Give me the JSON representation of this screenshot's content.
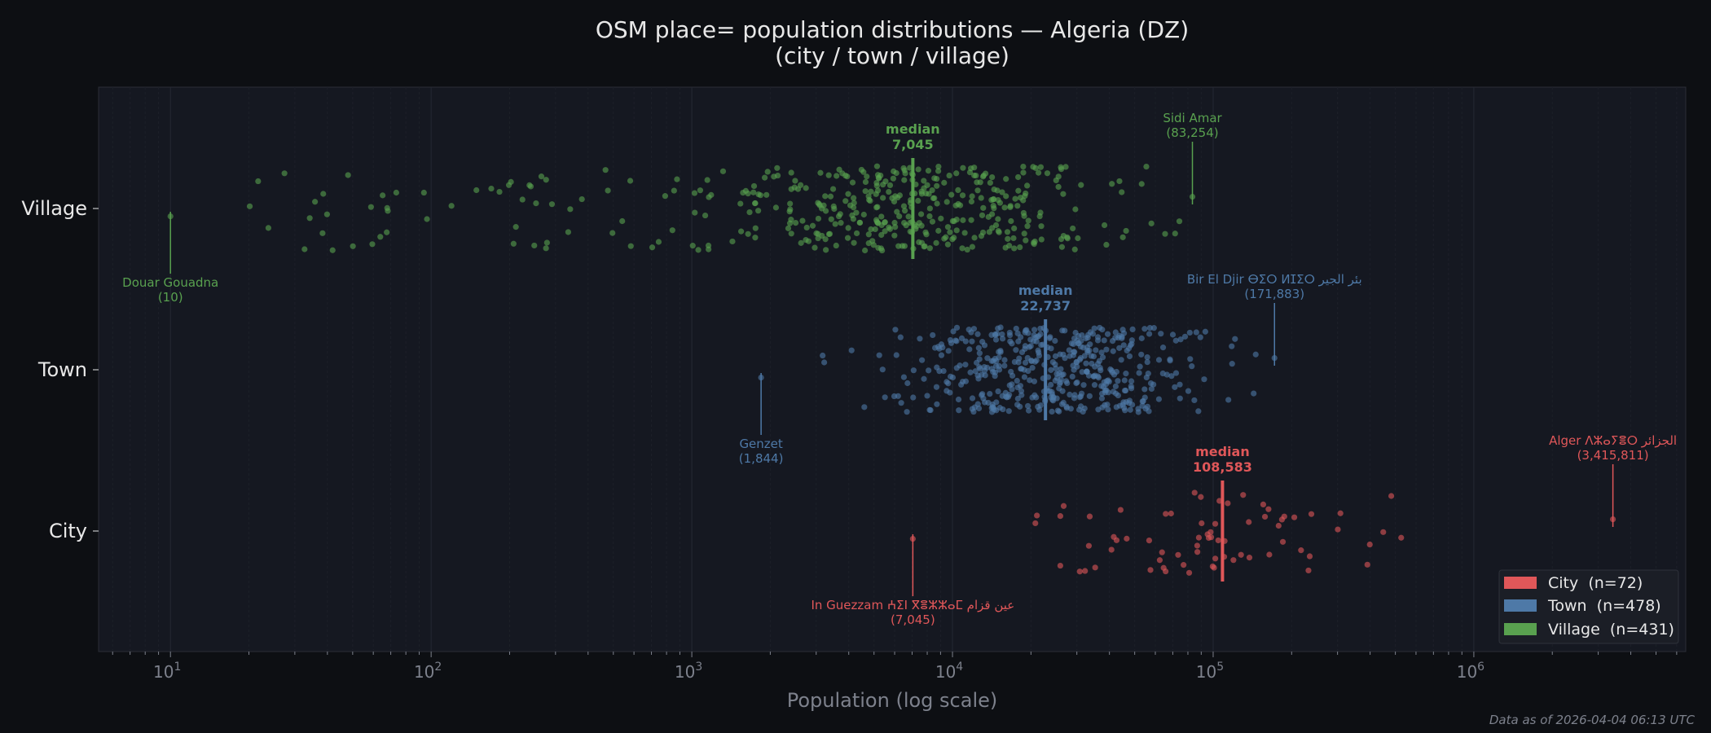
{
  "colors": {
    "background": "#0d0f13",
    "plot_background": "#151821",
    "city": "#e05759",
    "town": "#4e79a7",
    "village": "#59a14f",
    "text": "#e8e8e8",
    "muted": "#7d818c"
  },
  "chart_data": {
    "type": "scatter",
    "subtype": "strip / jitter plot",
    "title_line1": "OSM place= population distributions — Algeria (DZ)",
    "title_line2": "(city / town / village)",
    "xlabel": "Population (log scale)",
    "xscale": "log",
    "xlim": [
      5.3,
      6500000
    ],
    "x_ticks": [
      {
        "base": "10",
        "exp": "1",
        "value": 10
      },
      {
        "base": "10",
        "exp": "2",
        "value": 100
      },
      {
        "base": "10",
        "exp": "3",
        "value": 1000
      },
      {
        "base": "10",
        "exp": "4",
        "value": 10000
      },
      {
        "base": "10",
        "exp": "5",
        "value": 100000
      },
      {
        "base": "10",
        "exp": "6",
        "value": 1000000
      }
    ],
    "categories": [
      "Village",
      "Town",
      "City"
    ],
    "grid": "vertical minor lines",
    "legend_placement": "bottom-right",
    "series": [
      {
        "key": "village",
        "name": "Village  (n=431)",
        "category": "Village",
        "n": 431,
        "median": 7045,
        "median_label": "median",
        "median_value_label": "7,045",
        "range": [
          10,
          83254
        ],
        "annotations": [
          {
            "name": "Douar Gouadna",
            "value": 10,
            "value_label": "(10)",
            "position": "below"
          },
          {
            "name": "Sidi Amar",
            "value": 83254,
            "value_label": "(83,254)",
            "position": "above"
          }
        ]
      },
      {
        "key": "town",
        "name": "Town  (n=478)",
        "category": "Town",
        "n": 478,
        "median": 22737,
        "median_label": "median",
        "median_value_label": "22,737",
        "range": [
          1844,
          171883
        ],
        "annotations": [
          {
            "name": "Genzet",
            "value": 1844,
            "value_label": "(1,844)",
            "position": "below"
          },
          {
            "name": "Bir El Djir ⴱⵉⵔ ⵍⵊⵉⵔ بئر الجير",
            "value": 171883,
            "value_label": "(171,883)",
            "position": "above"
          }
        ]
      },
      {
        "key": "city",
        "name": "City  (n=72)",
        "category": "City",
        "n": 72,
        "median": 108583,
        "median_label": "median",
        "median_value_label": "108,583",
        "range": [
          7045,
          3415811
        ],
        "annotations": [
          {
            "name": "In Guezzam ⵄⵉⵏ ⴳⴻⵣⵣⴰⵎ عين قزام",
            "value": 7045,
            "value_label": "(7,045)",
            "position": "below"
          },
          {
            "name": "Alger ⴷⵣⴰⵢⴻⵔ الجزائر",
            "value": 3415811,
            "value_label": "(3,415,811)",
            "position": "above"
          }
        ]
      }
    ],
    "legend": [
      "City  (n=72)",
      "Town  (n=478)",
      "Village  (n=431)"
    ]
  },
  "footer": "Data as of 2026-04-04 06:13 UTC"
}
